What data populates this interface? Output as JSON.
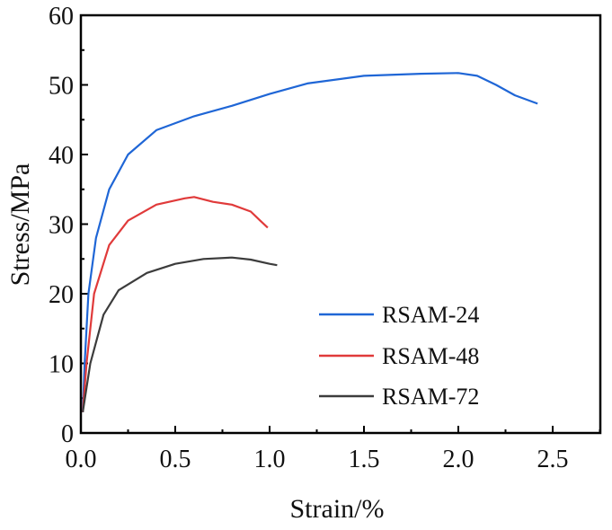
{
  "chart_data": {
    "type": "line",
    "xlabel": "Strain/%",
    "ylabel": "Stress/MPa",
    "xlim": [
      0,
      2.75
    ],
    "ylim": [
      0,
      60
    ],
    "xticks": [
      "0.0",
      "0.5",
      "1.0",
      "1.5",
      "2.0",
      "2.5"
    ],
    "yticks": [
      "0",
      "10",
      "20",
      "30",
      "40",
      "50",
      "60"
    ],
    "legend_position": "lower-right",
    "series": [
      {
        "name": "RSAM-24",
        "color": "#1f66d6",
        "x": [
          0.01,
          0.02,
          0.04,
          0.08,
          0.15,
          0.25,
          0.4,
          0.6,
          0.8,
          1.0,
          1.2,
          1.5,
          1.8,
          2.0,
          2.1,
          2.2,
          2.3,
          2.42
        ],
        "y": [
          3,
          10,
          20,
          28,
          35,
          40,
          43.5,
          45.5,
          47,
          48.7,
          50.2,
          51.3,
          51.6,
          51.7,
          51.3,
          50,
          48.5,
          47.3
        ]
      },
      {
        "name": "RSAM-48",
        "color": "#e03a3a",
        "x": [
          0.01,
          0.03,
          0.07,
          0.15,
          0.25,
          0.4,
          0.55,
          0.6,
          0.7,
          0.8,
          0.9,
          0.95,
          0.99
        ],
        "y": [
          3,
          10,
          20,
          27,
          30.5,
          32.8,
          33.7,
          33.9,
          33.2,
          32.8,
          31.8,
          30.5,
          29.5
        ]
      },
      {
        "name": "RSAM-72",
        "color": "#3c3c3c",
        "x": [
          0.01,
          0.05,
          0.12,
          0.2,
          0.35,
          0.5,
          0.65,
          0.8,
          0.9,
          1.0,
          1.04
        ],
        "y": [
          3,
          10,
          17,
          20.5,
          23,
          24.3,
          25,
          25.2,
          24.9,
          24.3,
          24.1
        ]
      }
    ]
  }
}
